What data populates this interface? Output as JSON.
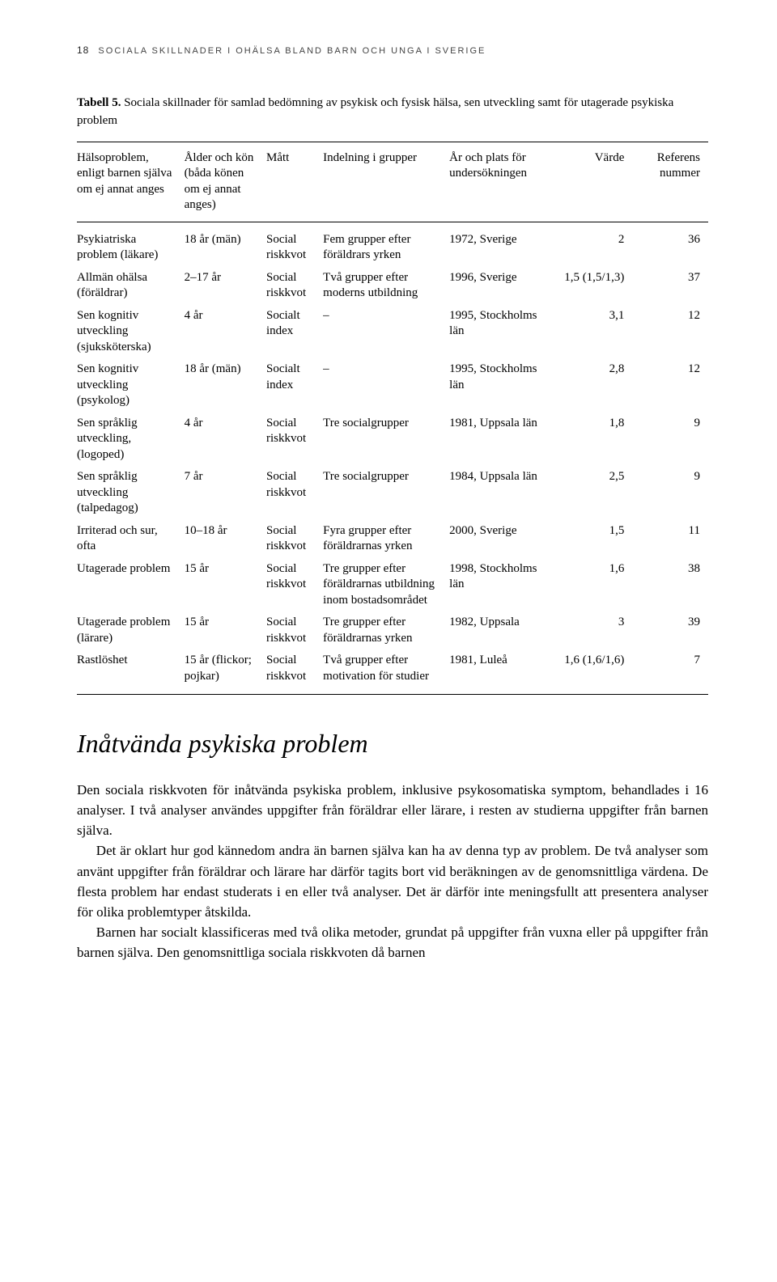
{
  "header": {
    "page_number": "18",
    "running_title": "SOCIALA SKILLNADER I OHÄLSA BLAND BARN OCH UNGA I SVERIGE"
  },
  "table": {
    "caption_label": "Tabell 5.",
    "caption_text": "Sociala skillnader för samlad bedömning av psykisk och fysisk hälsa, sen utveckling samt för utagerade psykiska problem",
    "columns": [
      "Hälsoproblem, enligt barnen själva om ej annat anges",
      "Ålder och kön (båda könen om ej annat anges)",
      "Mått",
      "Indelning i grupper",
      "År och plats för undersökningen",
      "Värde",
      "Referens nummer"
    ],
    "rows": [
      {
        "c0": "Psykiatriska problem (läkare)",
        "c1": "18 år (män)",
        "c2": "Social riskkvot",
        "c3": "Fem grupper efter föräldrars yrken",
        "c4": "1972, Sverige",
        "c5": "2",
        "c6": "36"
      },
      {
        "c0": "Allmän ohälsa (föräldrar)",
        "c1": "2–17 år",
        "c2": "Social riskkvot",
        "c3": "Två grupper efter moderns utbildning",
        "c4": "1996, Sverige",
        "c5": "1,5 (1,5/1,3)",
        "c6": "37"
      },
      {
        "c0": "Sen kognitiv utveckling (sjuksköterska)",
        "c1": "4 år",
        "c2": "Socialt index",
        "c3": "–",
        "c4": "1995, Stockholms län",
        "c5": "3,1",
        "c6": "12"
      },
      {
        "c0": "Sen kognitiv utveckling (psykolog)",
        "c1": "18 år (män)",
        "c2": "Socialt index",
        "c3": "–",
        "c4": "1995, Stockholms län",
        "c5": "2,8",
        "c6": "12"
      },
      {
        "c0": "Sen språklig utveckling, (logoped)",
        "c1": "4 år",
        "c2": "Social riskkvot",
        "c3": "Tre socialgrupper",
        "c4": "1981, Uppsala län",
        "c5": "1,8",
        "c6": "9"
      },
      {
        "c0": "Sen språklig utveckling (talpedagog)",
        "c1": "7 år",
        "c2": "Social riskkvot",
        "c3": "Tre socialgrupper",
        "c4": "1984, Uppsala län",
        "c5": "2,5",
        "c6": "9"
      },
      {
        "c0": "Irriterad och sur, ofta",
        "c1": "10–18 år",
        "c2": "Social riskkvot",
        "c3": "Fyra grupper efter föräldrarnas yrken",
        "c4": "2000, Sverige",
        "c5": "1,5",
        "c6": "11"
      },
      {
        "c0": "Utagerade problem",
        "c1": "15 år",
        "c2": "Social riskkvot",
        "c3": "Tre grupper efter föräldrarnas utbildning inom bostadsområdet",
        "c4": "1998, Stockholms län",
        "c5": "1,6",
        "c6": "38"
      },
      {
        "c0": "Utagerade problem (lärare)",
        "c1": "15 år",
        "c2": "Social riskkvot",
        "c3": "Tre grupper efter föräldrarnas yrken",
        "c4": "1982, Uppsala",
        "c5": "3",
        "c6": "39"
      },
      {
        "c0": "Rastlöshet",
        "c1": "15 år (flickor; pojkar)",
        "c2": "Social riskkvot",
        "c3": "Två grupper efter motivation för studier",
        "c4": "1981, Luleå",
        "c5": "1,6 (1,6/1,6)",
        "c6": "7"
      }
    ]
  },
  "section_heading": "Inåtvända psykiska problem",
  "paragraphs": [
    "Den sociala riskkvoten för inåtvända psykiska problem, inklusive psykosomatiska symptom, behandlades i 16 analyser. I två analyser användes uppgifter från föräldrar eller lärare, i resten av studierna uppgifter från barnen själva.",
    "Det är oklart hur god kännedom andra än barnen själva kan ha av denna typ av problem. De två analyser som använt uppgifter från föräldrar och lärare har därför tagits bort vid beräkningen av de genomsnittliga värdena. De flesta problem har endast studerats i en eller två analyser. Det är därför inte meningsfullt att presentera analyser för olika problemtyper åtskilda.",
    "Barnen har socialt klassificeras med två olika metoder, grundat på uppgifter från vuxna eller på uppgifter från barnen själva. Den genomsnittliga sociala riskkvoten då barnen"
  ]
}
